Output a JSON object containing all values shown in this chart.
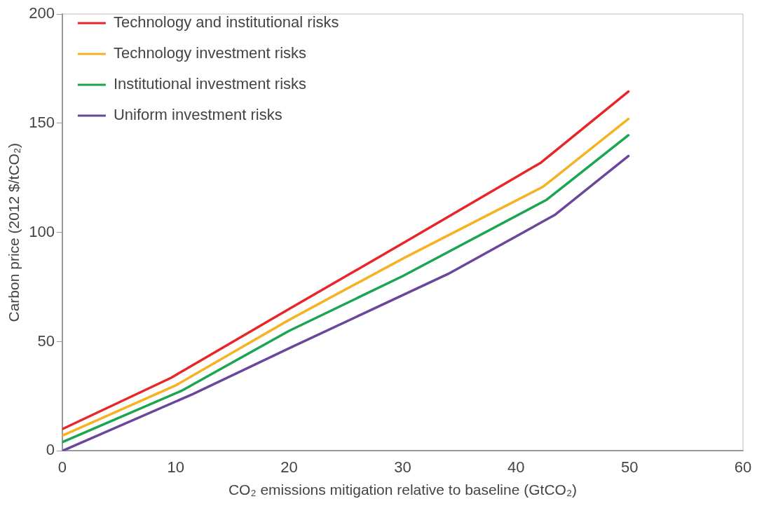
{
  "chart_data": {
    "type": "line",
    "xlabel": "CO₂ emissions mitigation relative to baseline (GtCO₂)",
    "ylabel": "Carbon price (2012 $/tCO₂)",
    "xlim": [
      0,
      60
    ],
    "xticks": [
      0,
      10,
      20,
      30,
      40,
      50,
      60
    ],
    "ylim": [
      0,
      200
    ],
    "yticks": [
      0,
      50,
      100,
      150,
      200
    ],
    "grid": false,
    "legend": "top left",
    "marker": "none",
    "line_style": "solid",
    "series": [
      {
        "name": "Technology and institutional risks",
        "color": "#e8262a",
        "x": [
          0,
          9.6,
          20,
          30,
          42.2,
          49.9
        ],
        "values": [
          10,
          33.5,
          65,
          95,
          132,
          164.5
        ]
      },
      {
        "name": "Technology investment risks",
        "color": "#f5b324",
        "x": [
          0,
          10,
          20,
          30,
          42.4,
          49.9
        ],
        "values": [
          7,
          30,
          60,
          88,
          121,
          152
        ]
      },
      {
        "name": "Institutional investment risks",
        "color": "#1aa650",
        "x": [
          0,
          10.5,
          20,
          30,
          42.7,
          49.9
        ],
        "values": [
          4,
          27.5,
          55,
          80,
          115,
          144.5
        ]
      },
      {
        "name": "Uniform investment risks",
        "color": "#6b479c",
        "x": [
          0,
          11.5,
          20,
          34,
          43.4,
          49.9
        ],
        "values": [
          0,
          26,
          47,
          81,
          108,
          135
        ]
      }
    ]
  }
}
